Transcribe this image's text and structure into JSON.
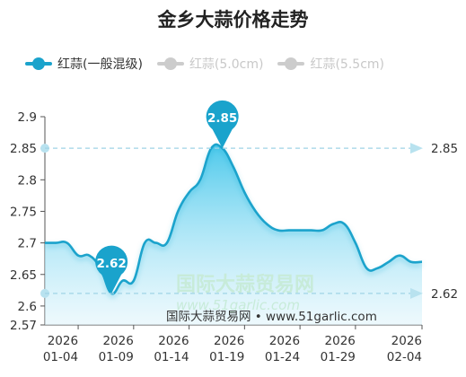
{
  "chart_data": {
    "type": "area",
    "title": "金乡大蒜价格走势",
    "legend_position": "top-left",
    "series": [
      {
        "name": "红蒜(一般混级)",
        "color": "#1aa3cc",
        "active": true,
        "x": [
          "2026-01-01",
          "2026-01-02",
          "2026-01-03",
          "2026-01-04",
          "2026-01-05",
          "2026-01-06",
          "2026-01-07",
          "2026-01-08",
          "2026-01-09",
          "2026-01-10",
          "2026-01-11",
          "2026-01-12",
          "2026-01-13",
          "2026-01-14",
          "2026-01-15",
          "2026-01-16",
          "2026-01-17",
          "2026-01-18",
          "2026-01-19",
          "2026-01-20",
          "2026-01-21",
          "2026-01-22",
          "2026-01-23",
          "2026-01-24",
          "2026-01-25",
          "2026-01-26",
          "2026-01-27",
          "2026-01-28",
          "2026-01-29",
          "2026-01-30",
          "2026-01-31",
          "2026-02-01",
          "2026-02-02",
          "2026-02-03",
          "2026-02-04"
        ],
        "values": [
          2.7,
          2.7,
          2.7,
          2.68,
          2.68,
          2.66,
          2.62,
          2.64,
          2.64,
          2.7,
          2.7,
          2.7,
          2.75,
          2.78,
          2.8,
          2.85,
          2.85,
          2.82,
          2.78,
          2.75,
          2.73,
          2.72,
          2.72,
          2.72,
          2.72,
          2.72,
          2.73,
          2.73,
          2.7,
          2.66,
          2.66,
          2.67,
          2.68,
          2.67,
          2.67
        ]
      },
      {
        "name": "红蒜(5.0cm)",
        "color": "#cccccc",
        "active": false,
        "values": []
      },
      {
        "name": "红蒜(5.5cm)",
        "color": "#cccccc",
        "active": false,
        "values": []
      }
    ],
    "ylim": [
      2.57,
      2.9
    ],
    "yticks": [
      "2.9",
      "2.85",
      "2.8",
      "2.75",
      "2.7",
      "2.65",
      "2.6",
      "2.57"
    ],
    "xticks": [
      {
        "date": "2026-01-04",
        "top": "2026",
        "bottom": "01-04"
      },
      {
        "date": "2026-01-09",
        "top": "2026",
        "bottom": "01-09"
      },
      {
        "date": "2026-01-14",
        "top": "2026",
        "bottom": "01-14"
      },
      {
        "date": "2026-01-19",
        "top": "2026",
        "bottom": "01-19"
      },
      {
        "date": "2026-01-24",
        "top": "2026",
        "bottom": "01-24"
      },
      {
        "date": "2026-01-29",
        "top": "2026",
        "bottom": "01-29"
      },
      {
        "date": "2026-02-04",
        "top": "2026",
        "bottom": "02-04"
      }
    ],
    "max_marker": {
      "label": "2.85",
      "date": "2026-01-17",
      "value": 2.85
    },
    "min_marker": {
      "label": "2.62",
      "date": "2026-01-07",
      "value": 2.62
    },
    "mark_lines": [
      {
        "label": "2.85",
        "value": 2.85
      },
      {
        "label": "2.62",
        "value": 2.62
      }
    ],
    "grid": false
  },
  "watermark": {
    "name": "国际大蒜贸易网",
    "url": "www.51garlic.com",
    "credit": "国际大蒜贸易网 • www.51garlic.com"
  }
}
